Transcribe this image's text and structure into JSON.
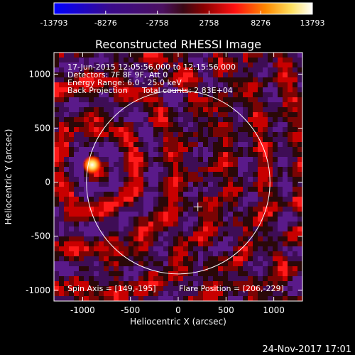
{
  "colorbar": {
    "ticks": [
      "-13793",
      "-8276",
      "-2758",
      "2758",
      "8276",
      "13793"
    ],
    "colors": [
      "#0000ff",
      "#3a0a8a",
      "#4b1060",
      "#4a0a1a",
      "#8a0000",
      "#ff1010",
      "#ff8a00",
      "#ffe060",
      "#ffffff"
    ]
  },
  "chart_data": {
    "type": "heatmap",
    "title": "Reconstructed RHESSI Image",
    "xlabel": "Heliocentric X (arcsec)",
    "ylabel": "Heliocentric Y (arcsec)",
    "xlim": [
      -1300,
      1300
    ],
    "ylim": [
      -1100,
      1200
    ],
    "xticks": [
      "-1000",
      "-500",
      "0",
      "500",
      "1000"
    ],
    "yticks": [
      "1000",
      "500",
      "0",
      "-500",
      "-1000"
    ],
    "value_range": [
      -13793,
      13793
    ],
    "solar_limb_radius_arcsec": 960,
    "flare_position": [
      206,
      -229
    ],
    "spin_axis": [
      149,
      -195
    ],
    "bright_source": [
      -900,
      160
    ],
    "info": {
      "time_range": "17-Jun-2015 12:05:56.000 to 12:15:56.000",
      "detectors": "Detectors: 7F 8F 9F, Att 0",
      "energy": "Energy Range: 6.0 - 25.0 keV",
      "method": "Back Projection",
      "counts": "Total counts: 2.83E+04"
    },
    "spin_axis_label": "Spin Axis = [149,-195]",
    "flare_position_label": "Flare Position = [206,-229]"
  },
  "footer_timestamp": "24-Nov-2017 17:01"
}
